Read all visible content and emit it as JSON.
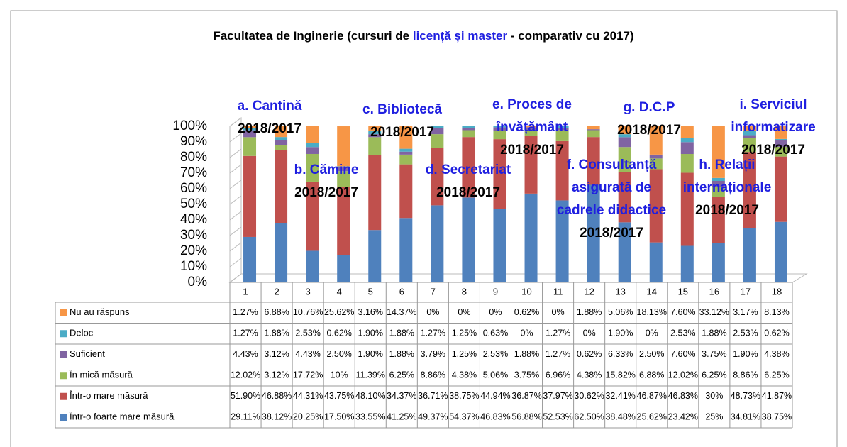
{
  "chart_data": {
    "type": "stacked_bar",
    "title": [
      "Facultatea de Inginerie (cursuri de ",
      "licență și master",
      " - comparativ cu 2017)"
    ],
    "title_colors": [
      "#000000",
      "#1f1fe0",
      "#000000"
    ],
    "categories": [
      "1",
      "2",
      "3",
      "4",
      "5",
      "6",
      "7",
      "8",
      "9",
      "10",
      "11",
      "12",
      "13",
      "14",
      "15",
      "16",
      "17",
      "18"
    ],
    "ylim": [
      0,
      100
    ],
    "yticks": [
      {
        "value": 0,
        "label": "0%"
      },
      {
        "value": 10,
        "label": "10%"
      },
      {
        "value": 20,
        "label": "20%"
      },
      {
        "value": 30,
        "label": "30%"
      },
      {
        "value": 40,
        "label": "40%"
      },
      {
        "value": 50,
        "label": "50%"
      },
      {
        "value": 60,
        "label": "60%"
      },
      {
        "value": 70,
        "label": "70%"
      },
      {
        "value": 80,
        "label": "80%"
      },
      {
        "value": 90,
        "label": "90%"
      },
      {
        "value": 100,
        "label": "100%"
      }
    ],
    "grid": true,
    "series": [
      {
        "name": "Într-o foarte mare măsură",
        "color": "#4f81bd",
        "values": [
          29.11,
          38.12,
          20.25,
          17.5,
          33.55,
          41.25,
          49.37,
          54.37,
          46.83,
          56.88,
          52.53,
          62.5,
          38.48,
          25.62,
          23.42,
          25,
          34.81,
          38.75
        ],
        "value_labels": [
          "29.11%",
          "38.12%",
          "20.25%",
          "17.50%",
          "33.55%",
          "41.25%",
          "49.37%",
          "54.37%",
          "46.83%",
          "56.88%",
          "52.53%",
          "62.50%",
          "38.48%",
          "25.62%",
          "23.42%",
          "25%",
          "34.81%",
          "38.75%"
        ]
      },
      {
        "name": "Într-o mare măsură",
        "color": "#c0504d",
        "values": [
          51.9,
          46.88,
          44.31,
          43.75,
          48.1,
          34.37,
          36.71,
          38.75,
          44.94,
          36.87,
          37.97,
          30.62,
          32.41,
          46.87,
          46.83,
          30,
          48.73,
          41.87
        ],
        "value_labels": [
          "51.90%",
          "46.88%",
          "44.31%",
          "43.75%",
          "48.10%",
          "34.37%",
          "36.71%",
          "38.75%",
          "44.94%",
          "36.87%",
          "37.97%",
          "30.62%",
          "32.41%",
          "46.87%",
          "46.83%",
          "30%",
          "48.73%",
          "41.87%"
        ]
      },
      {
        "name": "În mică măsură",
        "color": "#9bbb59",
        "values": [
          12.02,
          3.12,
          17.72,
          10,
          11.39,
          6.25,
          8.86,
          4.38,
          5.06,
          3.75,
          6.96,
          4.38,
          15.82,
          6.88,
          12.02,
          6.25,
          8.86,
          6.25
        ],
        "value_labels": [
          "12.02%",
          "3.12%",
          "17.72%",
          "10%",
          "11.39%",
          "6.25%",
          "8.86%",
          "4.38%",
          "5.06%",
          "3.75%",
          "6.96%",
          "4.38%",
          "15.82%",
          "6.88%",
          "12.02%",
          "6.25%",
          "8.86%",
          "6.25%"
        ]
      },
      {
        "name": "Suficient",
        "color": "#8064a2",
        "values": [
          4.43,
          3.12,
          4.43,
          2.5,
          1.9,
          1.88,
          3.79,
          1.25,
          2.53,
          1.88,
          1.27,
          0.62,
          6.33,
          2.5,
          7.6,
          3.75,
          1.9,
          4.38
        ],
        "value_labels": [
          "4.43%",
          "3.12%",
          "4.43%",
          "2.50%",
          "1.90%",
          "1.88%",
          "3.79%",
          "1.25%",
          "2.53%",
          "1.88%",
          "1.27%",
          "0.62%",
          "6.33%",
          "2.50%",
          "7.60%",
          "3.75%",
          "1.90%",
          "4.38%"
        ]
      },
      {
        "name": "Deloc",
        "color": "#4bacc6",
        "values": [
          1.27,
          1.88,
          2.53,
          0.62,
          1.9,
          1.88,
          1.27,
          1.25,
          0.63,
          0,
          1.27,
          0,
          1.9,
          0,
          2.53,
          1.88,
          2.53,
          0.62
        ],
        "value_labels": [
          "1.27%",
          "1.88%",
          "2.53%",
          "0.62%",
          "1.90%",
          "1.88%",
          "1.27%",
          "1.25%",
          "0.63%",
          "0%",
          "1.27%",
          "0%",
          "1.90%",
          "0%",
          "2.53%",
          "1.88%",
          "2.53%",
          "0.62%"
        ]
      },
      {
        "name": "Nu au răspuns",
        "color": "#f79646",
        "values": [
          1.27,
          6.88,
          10.76,
          25.62,
          3.16,
          14.37,
          0,
          0,
          0,
          0.62,
          0,
          1.88,
          5.06,
          18.13,
          7.6,
          33.12,
          3.17,
          8.13
        ],
        "value_labels": [
          "1.27%",
          "6.88%",
          "10.76%",
          "25.62%",
          "3.16%",
          "14.37%",
          "0%",
          "0%",
          "0%",
          "0.62%",
          "0%",
          "1.88%",
          "5.06%",
          "18.13%",
          "7.60%",
          "33.12%",
          "3.17%",
          "8.13%"
        ]
      }
    ],
    "annotations": [
      [
        "a. Cantină",
        "2018/2017"
      ],
      [
        "b. Cămine",
        "2018/2017"
      ],
      [
        "c. Bibliotecă",
        "2018/2017"
      ],
      [
        "d. Secretariat",
        "2018/2017"
      ],
      [
        "e. Proces de",
        "învățământ",
        "2018/2017"
      ],
      [
        "f. Consultanță",
        "asigurată de",
        "cadrele didactice",
        "2018/2017"
      ],
      [
        "g. D.C.P",
        "2018/2017"
      ],
      [
        "h. Relații",
        "internaționale",
        "2018/2017"
      ],
      [
        "i. Serviciul",
        "informatizare",
        "2018/2017"
      ]
    ]
  }
}
